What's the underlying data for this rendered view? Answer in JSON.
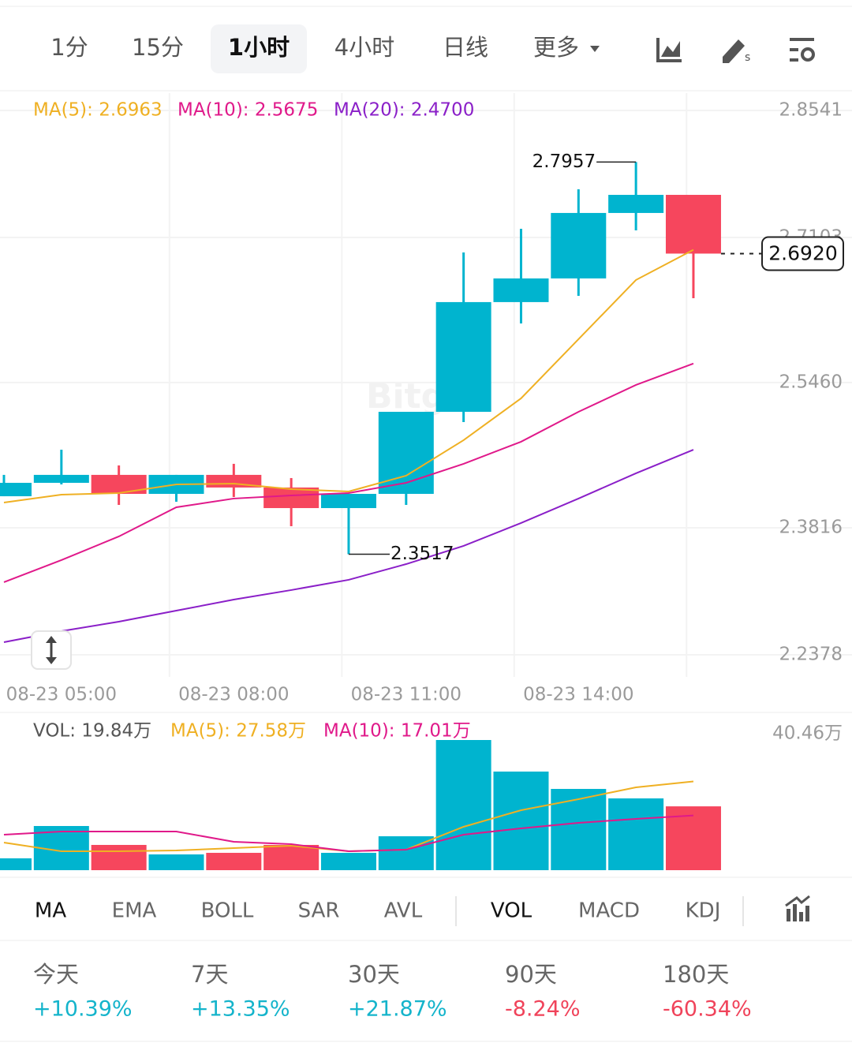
{
  "tabs": {
    "intervals": [
      "1分",
      "15分",
      "1小时",
      "4小时",
      "日线",
      "更多"
    ]
  },
  "watermark": "Bitget",
  "indicator_tabs": {
    "main": [
      "MA",
      "EMA",
      "BOLL",
      "SAR",
      "AVL"
    ],
    "sub": [
      "VOL",
      "MACD",
      "KDJ"
    ]
  },
  "stats": [
    {
      "label": "今天",
      "change": "+10.39%"
    },
    {
      "label": "7天",
      "change": "+13.35%"
    },
    {
      "label": "30天",
      "change": "+21.87%"
    },
    {
      "label": "90天",
      "change": "-8.24%"
    },
    {
      "label": "180天",
      "change": "-60.34%"
    }
  ],
  "chart_data": [
    {
      "type": "candlestick",
      "categories": [
        null,
        "08-23 05:00",
        null,
        null,
        "08-23 08:00",
        null,
        null,
        "08-23 11:00",
        null,
        null,
        "08-23 14:00",
        null,
        null
      ],
      "open": [
        2.4173,
        2.4325,
        2.4415,
        2.42,
        2.4415,
        2.4272,
        2.4039,
        2.42,
        2.5129,
        2.6371,
        2.6639,
        2.738,
        2.7585
      ],
      "high": [
        2.4415,
        2.47,
        2.4522,
        2.4415,
        2.454,
        2.4379,
        2.42,
        2.5129,
        2.6933,
        2.7201,
        2.7648,
        2.7957,
        2.7585
      ],
      "low": [
        2.4173,
        2.4307,
        2.4075,
        2.4111,
        2.4164,
        2.3834,
        2.3517,
        2.4075,
        2.5013,
        2.6129,
        2.6442,
        2.7183,
        2.6415
      ],
      "close": [
        2.4325,
        2.4415,
        2.42,
        2.4415,
        2.4272,
        2.4039,
        2.42,
        2.5129,
        2.6371,
        2.6639,
        2.738,
        2.7585,
        2.692
      ],
      "up_color": "#00b4cf",
      "down_color": "#f6465d",
      "series": [
        {
          "name": "MA(5): 2.6963",
          "color": "#efb023",
          "values": [
            2.4102,
            2.4191,
            2.4209,
            2.4307,
            2.4316,
            2.4254,
            2.4227,
            2.4406,
            2.4808,
            2.5281,
            2.5951,
            2.6621,
            2.6963
          ]
        },
        {
          "name": "MA(10): 2.5675",
          "color": "#e0198a",
          "values": [
            2.32,
            2.345,
            2.3718,
            2.4048,
            2.4147,
            2.4182,
            2.4209,
            2.4325,
            2.454,
            2.479,
            2.5129,
            2.5433,
            2.5675
          ]
        },
        {
          "name": "MA(20): 2.4700",
          "color": "#8a1fc8",
          "values": [
            2.2521,
            2.2646,
            2.2753,
            2.2878,
            2.3003,
            2.3111,
            2.3227,
            2.3405,
            2.3611,
            2.387,
            2.4147,
            2.4433,
            2.47
          ]
        }
      ],
      "high_label": 2.7957,
      "low_label": 2.3517,
      "last_price": {
        "value": 2.692,
        "label": "2.6920"
      },
      "ylim": [
        2.2128,
        2.8737
      ],
      "yticks": [
        2.8541,
        2.7103,
        {
          "value": 2.546,
          "label": "2.5460"
        },
        2.3816,
        2.2378
      ],
      "grid": true
    },
    {
      "type": "bar",
      "title": "VOL: 19.84万",
      "values": [
        3.68,
        13.73,
        7.85,
        4.9,
        5.39,
        7.85,
        5.39,
        10.54,
        40.46,
        30.65,
        25.26,
        22.31,
        19.84
      ],
      "colors": [
        "#00b4cf",
        "#00b4cf",
        "#f6465d",
        "#00b4cf",
        "#f6465d",
        "#f6465d",
        "#00b4cf",
        "#00b4cf",
        "#00b4cf",
        "#00b4cf",
        "#00b4cf",
        "#00b4cf",
        "#f6465d"
      ],
      "series": [
        {
          "name": "MA(5): 27.58万",
          "color": "#efb023",
          "values": [
            8.58,
            5.89,
            5.89,
            6.13,
            6.87,
            7.6,
            5.89,
            6.38,
            13.49,
            18.64,
            22.07,
            25.75,
            27.58
          ]
        },
        {
          "name": "MA(10): 17.01万",
          "color": "#e0198a",
          "values": [
            11.03,
            12.02,
            12.02,
            12.02,
            8.83,
            8.09,
            5.89,
            6.38,
            11.03,
            13.0,
            14.71,
            15.94,
            17.01
          ]
        }
      ],
      "ylim": [
        0,
        46.1
      ],
      "yticks": [
        {
          "value": 40.46,
          "label": "40.46万"
        }
      ]
    }
  ]
}
